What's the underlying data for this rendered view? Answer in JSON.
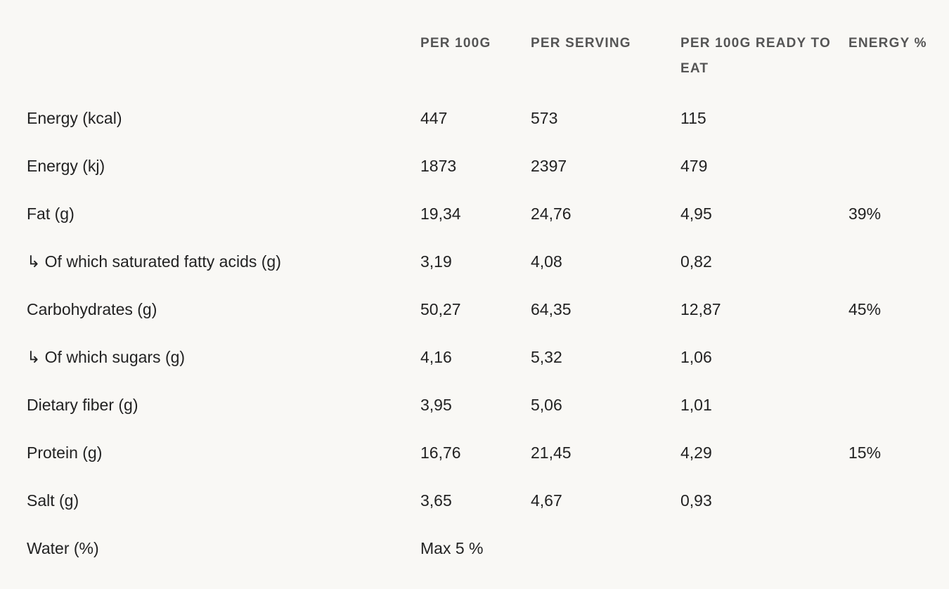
{
  "table": {
    "headers": [
      "PER 100G",
      "PER SERVING",
      "PER 100G READY TO EAT",
      "ENERGY %"
    ],
    "rows": [
      [
        "Energy (kcal)",
        "447",
        "573",
        "115"
      ],
      [
        "Energy (kj)",
        "1873",
        "2397",
        "479"
      ],
      [
        "Fat (g)",
        "19,34",
        "24,76",
        "4,95",
        "39%"
      ],
      [
        "↳ Of which saturated fatty acids (g)",
        "3,19",
        "4,08",
        "0,82"
      ],
      [
        "Carbohydrates (g)",
        "50,27",
        "64,35",
        "12,87",
        "45%"
      ],
      [
        "↳ Of which sugars (g)",
        "4,16",
        "5,32",
        "1,06"
      ],
      [
        "Dietary fiber (g)",
        "3,95",
        "5,06",
        "1,01"
      ],
      [
        "Protein (g)",
        "16,76",
        "21,45",
        "4,29",
        "15%"
      ],
      [
        "Salt (g)",
        "3,65",
        "4,67",
        "0,93"
      ],
      [
        "Water (%)",
        "Max 5 %"
      ]
    ]
  }
}
